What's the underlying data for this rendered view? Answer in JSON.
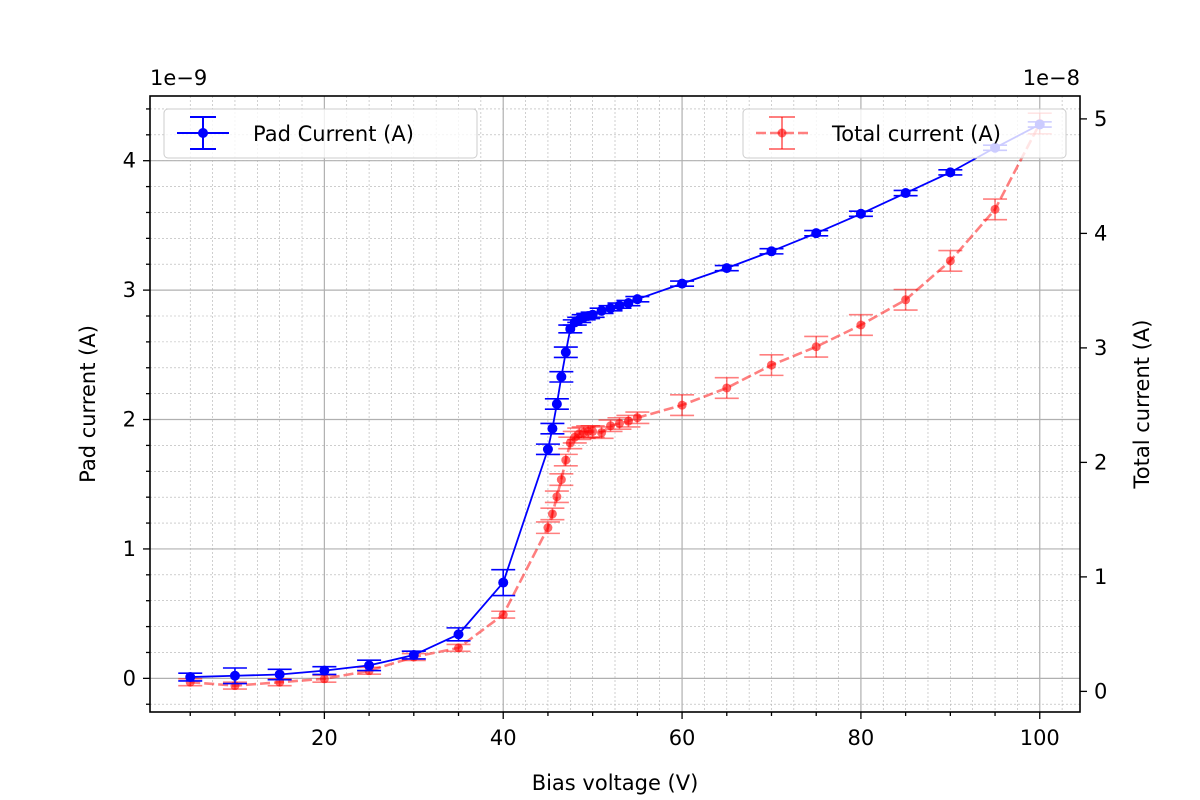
{
  "chart_data": {
    "type": "line",
    "xlabel": "Bias voltage (V)",
    "ylabel_left": "Pad current (A)",
    "ylabel_right": "Total current (A)",
    "offset_left": "1e−9",
    "offset_right": "1e−8",
    "xlim": [
      0.5,
      104.5
    ],
    "ylim_left": [
      -0.26,
      4.5
    ],
    "ylim_right": [
      -0.18,
      5.2
    ],
    "x_ticks": [
      20,
      40,
      60,
      80,
      100
    ],
    "y_left_ticks": [
      0,
      1,
      2,
      3,
      4
    ],
    "y_right_ticks": [
      0,
      1,
      2,
      3,
      4,
      5
    ],
    "grid": true,
    "series": [
      {
        "name": "Pad Current (A)",
        "axis": "left",
        "color": "#0000ff",
        "style": "solid",
        "x": [
          5,
          10,
          15,
          20,
          25,
          30,
          35,
          40,
          45,
          45.5,
          46,
          46.5,
          47,
          47.5,
          48,
          48.5,
          49,
          49.5,
          50,
          51,
          52,
          53,
          54,
          55,
          60,
          65,
          70,
          75,
          80,
          85,
          90,
          95,
          100
        ],
        "y": [
          0.01,
          0.02,
          0.03,
          0.06,
          0.1,
          0.18,
          0.34,
          0.74,
          1.77,
          1.93,
          2.12,
          2.33,
          2.52,
          2.7,
          2.75,
          2.77,
          2.79,
          2.8,
          2.81,
          2.84,
          2.86,
          2.88,
          2.9,
          2.93,
          3.05,
          3.17,
          3.3,
          3.44,
          3.59,
          3.75,
          3.91,
          4.1,
          4.28
        ],
        "yerr": [
          0.03,
          0.06,
          0.04,
          0.03,
          0.04,
          0.03,
          0.05,
          0.1,
          0.04,
          0.04,
          0.04,
          0.04,
          0.04,
          0.03,
          0.02,
          0.02,
          0.02,
          0.02,
          0.02,
          0.02,
          0.02,
          0.02,
          0.02,
          0.02,
          0.02,
          0.02,
          0.02,
          0.02,
          0.02,
          0.02,
          0.02,
          0.02,
          0.02
        ]
      },
      {
        "name": "Total current (A)",
        "axis": "right",
        "color": "#ff0000",
        "style": "dashed",
        "x": [
          5,
          10,
          15,
          20,
          25,
          30,
          35,
          40,
          45,
          45.5,
          46,
          46.5,
          47,
          47.5,
          48,
          48.5,
          49,
          49.5,
          50,
          51,
          52,
          53,
          54,
          55,
          60,
          65,
          70,
          75,
          80,
          85,
          90,
          95,
          100
        ],
        "y": [
          0.08,
          0.05,
          0.08,
          0.11,
          0.18,
          0.3,
          0.38,
          0.67,
          1.43,
          1.55,
          1.7,
          1.85,
          2.02,
          2.17,
          2.22,
          2.25,
          2.26,
          2.27,
          2.27,
          2.26,
          2.32,
          2.34,
          2.36,
          2.39,
          2.5,
          2.65,
          2.85,
          3.01,
          3.2,
          3.42,
          3.76,
          4.21,
          4.96
        ],
        "yerr": [
          0.03,
          0.03,
          0.03,
          0.03,
          0.03,
          0.03,
          0.03,
          0.03,
          0.05,
          0.05,
          0.05,
          0.05,
          0.05,
          0.05,
          0.05,
          0.05,
          0.05,
          0.05,
          0.05,
          0.05,
          0.05,
          0.05,
          0.05,
          0.05,
          0.09,
          0.09,
          0.09,
          0.09,
          0.09,
          0.09,
          0.09,
          0.09,
          0.09
        ]
      }
    ]
  }
}
